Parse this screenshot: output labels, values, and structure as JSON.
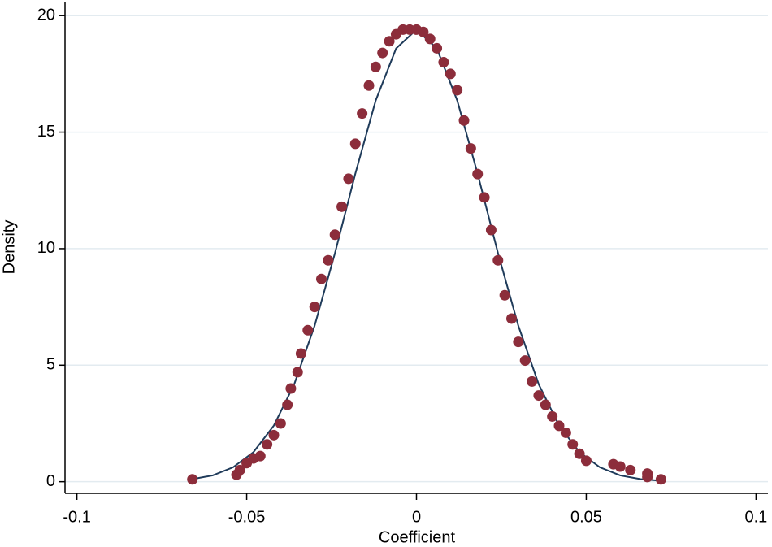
{
  "chart_data": {
    "type": "scatter",
    "x_label": "Coefficient",
    "y_label": "Density",
    "xlim": [
      -0.1035,
      0.1035
    ],
    "ylim": [
      -0.5,
      20.6
    ],
    "xticks": [
      -0.1,
      -0.05,
      0,
      0.05,
      0.1
    ],
    "yticks": [
      0,
      5,
      10,
      15,
      20
    ],
    "grid": true,
    "series": [
      {
        "type": "scatter",
        "color": "#8c2d3b",
        "x": [
          -0.066,
          -0.053,
          -0.052,
          -0.05,
          -0.048,
          -0.046,
          -0.044,
          -0.042,
          -0.04,
          -0.038,
          -0.037,
          -0.035,
          -0.034,
          -0.032,
          -0.03,
          -0.028,
          -0.026,
          -0.024,
          -0.022,
          -0.02,
          -0.018,
          -0.016,
          -0.014,
          -0.012,
          -0.01,
          -0.008,
          -0.006,
          -0.004,
          -0.002,
          0,
          0.002,
          0.004,
          0.006,
          0.008,
          0.01,
          0.012,
          0.014,
          0.016,
          0.018,
          0.02,
          0.022,
          0.024,
          0.026,
          0.028,
          0.03,
          0.032,
          0.034,
          0.036,
          0.038,
          0.04,
          0.042,
          0.044,
          0.046,
          0.048,
          0.05,
          0.058,
          0.06,
          0.063,
          0.068,
          0.068,
          0.072
        ],
        "values": [
          0.1,
          0.3,
          0.5,
          0.8,
          1.0,
          1.1,
          1.6,
          2.0,
          2.5,
          3.3,
          4.0,
          4.7,
          5.5,
          6.5,
          7.5,
          8.7,
          9.5,
          10.6,
          11.8,
          13.0,
          14.5,
          15.8,
          17.0,
          17.8,
          18.4,
          18.9,
          19.2,
          19.4,
          19.4,
          19.4,
          19.3,
          19.0,
          18.6,
          18.0,
          17.5,
          16.8,
          15.5,
          14.3,
          13.2,
          12.2,
          10.8,
          9.5,
          8.0,
          7.0,
          6.0,
          5.2,
          4.3,
          3.7,
          3.3,
          2.8,
          2.4,
          2.1,
          1.6,
          1.2,
          0.9,
          0.75,
          0.65,
          0.5,
          0.35,
          0.2,
          0.1
        ]
      },
      {
        "type": "line",
        "color": "#1f3b5a",
        "x": [
          -0.066,
          -0.06,
          -0.054,
          -0.048,
          -0.042,
          -0.036,
          -0.03,
          -0.024,
          -0.018,
          -0.012,
          -0.006,
          0,
          0.006,
          0.012,
          0.018,
          0.024,
          0.03,
          0.036,
          0.042,
          0.048,
          0.054,
          0.06,
          0.066,
          0.072
        ],
        "values": [
          0.11,
          0.27,
          0.62,
          1.27,
          2.41,
          4.18,
          6.69,
          9.81,
          13.22,
          16.36,
          18.59,
          19.4,
          18.59,
          16.36,
          13.22,
          9.81,
          6.69,
          4.18,
          2.41,
          1.27,
          0.62,
          0.27,
          0.11,
          0.04
        ]
      }
    ]
  }
}
